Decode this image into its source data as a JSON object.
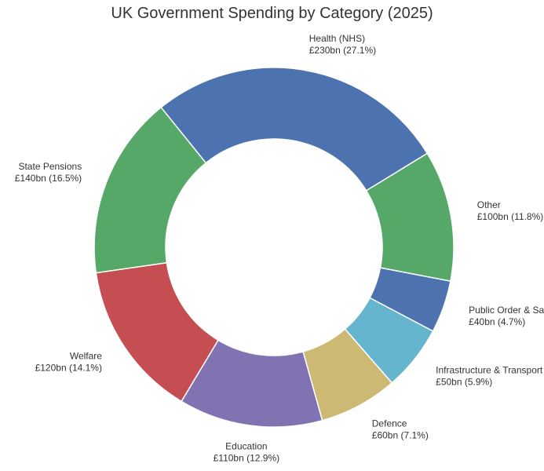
{
  "chart_data": {
    "type": "pie",
    "variant": "donut",
    "title": "UK Government Spending by Category (2025)",
    "unit": "£bn",
    "slices": [
      {
        "label": "Health (NHS)",
        "value": 230,
        "value_label": "£230bn (27.1%)",
        "color": "#4c72b0"
      },
      {
        "label": "State Pensions",
        "value": 140,
        "value_label": "£140bn (16.5%)",
        "color": "#55a868"
      },
      {
        "label": "Welfare",
        "value": 120,
        "value_label": "£120bn (14.1%)",
        "color": "#c44e52"
      },
      {
        "label": "Education",
        "value": 110,
        "value_label": "£110bn (12.9%)",
        "color": "#8172b2"
      },
      {
        "label": "Defence",
        "value": 60,
        "value_label": "£60bn (7.1%)",
        "color": "#ccb974"
      },
      {
        "label": "Infrastructure & Transport",
        "value": 50,
        "value_label": "£50bn (5.9%)",
        "color": "#64b5cd"
      },
      {
        "label": "Public Order & Safety",
        "value": 40,
        "value_label": "£40bn (4.7%)",
        "color": "#4c72b0"
      },
      {
        "label": "Other",
        "value": 100,
        "value_label": "£100bn (11.8%)",
        "color": "#55a868"
      }
    ],
    "legend": "none"
  }
}
